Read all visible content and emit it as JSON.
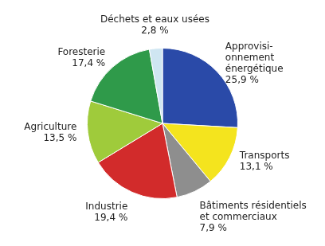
{
  "chart_data": {
    "type": "pie",
    "categories": [
      "Approvisi-\nonnement\nénergétique",
      "Transports",
      "Bâtiments résidentiels\net commerciaux",
      "Industrie",
      "Agriculture",
      "Foresterie",
      "Déchets et eaux usées"
    ],
    "values": [
      25.9,
      13.1,
      7.9,
      19.4,
      13.5,
      17.4,
      2.8
    ],
    "value_labels": [
      "25,9 %",
      "13,1 %",
      "7,9 %",
      "19,4 %",
      "13,5 %",
      "17,4 %",
      "2,8 %"
    ],
    "colors": [
      "#2a4aa8",
      "#f4e41e",
      "#8e8e8e",
      "#d22b2b",
      "#9fcb3b",
      "#2f9a4a",
      "#cfe6f2"
    ],
    "data_labels": true
  }
}
